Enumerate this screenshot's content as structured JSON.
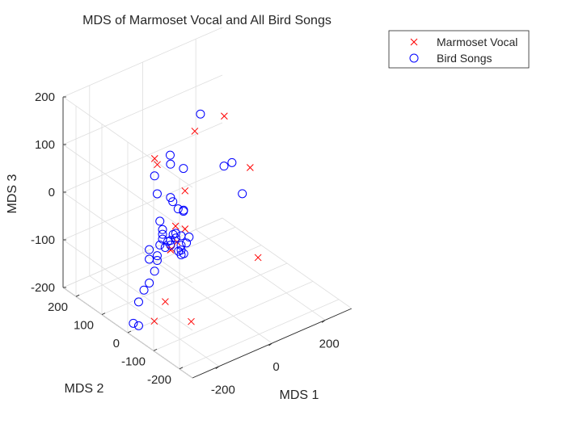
{
  "chart_data": {
    "type": "scatter",
    "projection": "3d",
    "title": "MDS of Marmoset Vocal and All Bird Songs",
    "xlabel": "MDS 1",
    "ylabel": "MDS 2",
    "zlabel": "MDS 3",
    "xlim": [
      -300,
      300
    ],
    "ylim": [
      -250,
      250
    ],
    "zlim": [
      -200,
      200
    ],
    "xticks": [
      -200,
      0,
      200
    ],
    "xtick_labels": [
      "-200",
      "0",
      "200"
    ],
    "yticks": [
      -200,
      -100,
      0,
      100,
      200
    ],
    "ytick_labels": [
      "-200",
      "-100",
      "0",
      "100",
      "200"
    ],
    "zticks": [
      -200,
      -100,
      0,
      100,
      200
    ],
    "ztick_labels": [
      "-200",
      "-100",
      "0",
      "100",
      "200"
    ],
    "grid": true,
    "legend_position": "top-right",
    "series": [
      {
        "name": "Marmoset Vocal",
        "marker": "x",
        "color": "#ff0000",
        "points": [
          [
            -150,
            50,
            110
          ],
          [
            -140,
            50,
            95
          ],
          [
            -60,
            25,
            30
          ],
          [
            -120,
            0,
            -20
          ],
          [
            -60,
            25,
            -50
          ],
          [
            -90,
            25,
            -70
          ],
          [
            -110,
            25,
            -80
          ],
          [
            -100,
            40,
            -90
          ],
          [
            -110,
            50,
            -200
          ],
          [
            -200,
            0,
            -200
          ],
          [
            -100,
            -40,
            -210
          ],
          [
            220,
            30,
            -180
          ],
          [
            200,
            140,
            80
          ],
          [
            200,
            40,
            10
          ],
          [
            50,
            100,
            100
          ]
        ]
      },
      {
        "name": "Bird Songs",
        "marker": "o",
        "color": "#0000ff",
        "points": [
          [
            -150,
            -10,
            140
          ],
          [
            -100,
            -10,
            100
          ],
          [
            -140,
            -10,
            40
          ],
          [
            -120,
            -10,
            20
          ],
          [
            -160,
            40,
            80
          ],
          [
            -150,
            40,
            40
          ],
          [
            -100,
            40,
            90
          ],
          [
            -100,
            40,
            20
          ],
          [
            -100,
            -10,
            10
          ],
          [
            -80,
            10,
            0
          ],
          [
            -140,
            40,
            -20
          ],
          [
            -180,
            40,
            -70
          ],
          [
            -130,
            40,
            -40
          ],
          [
            -180,
            40,
            -90
          ],
          [
            -130,
            40,
            -50
          ],
          [
            -130,
            40,
            -60
          ],
          [
            -180,
            40,
            -140
          ],
          [
            -150,
            40,
            -100
          ],
          [
            -200,
            40,
            -150
          ],
          [
            -220,
            40,
            -170
          ],
          [
            -240,
            40,
            -210
          ],
          [
            -220,
            40,
            -220
          ],
          [
            -160,
            40,
            -120
          ],
          [
            -150,
            40,
            -90
          ],
          [
            -120,
            40,
            -80
          ],
          [
            -100,
            40,
            -80
          ],
          [
            -80,
            40,
            -60
          ],
          [
            -60,
            40,
            -70
          ],
          [
            -70,
            40,
            -100
          ],
          [
            -60,
            40,
            -110
          ],
          [
            -50,
            40,
            -110
          ],
          [
            -40,
            40,
            -90
          ],
          [
            -140,
            40,
            -70
          ],
          [
            -110,
            40,
            -70
          ],
          [
            -100,
            40,
            -70
          ],
          [
            -90,
            40,
            -60
          ],
          [
            -80,
            40,
            -70
          ],
          [
            -60,
            40,
            -90
          ],
          [
            -60,
            40,
            -100
          ],
          [
            -30,
            40,
            -80
          ],
          [
            120,
            150,
            100
          ],
          [
            160,
            100,
            0
          ],
          [
            190,
            100,
            0
          ],
          [
            190,
            60,
            -50
          ]
        ]
      }
    ]
  }
}
